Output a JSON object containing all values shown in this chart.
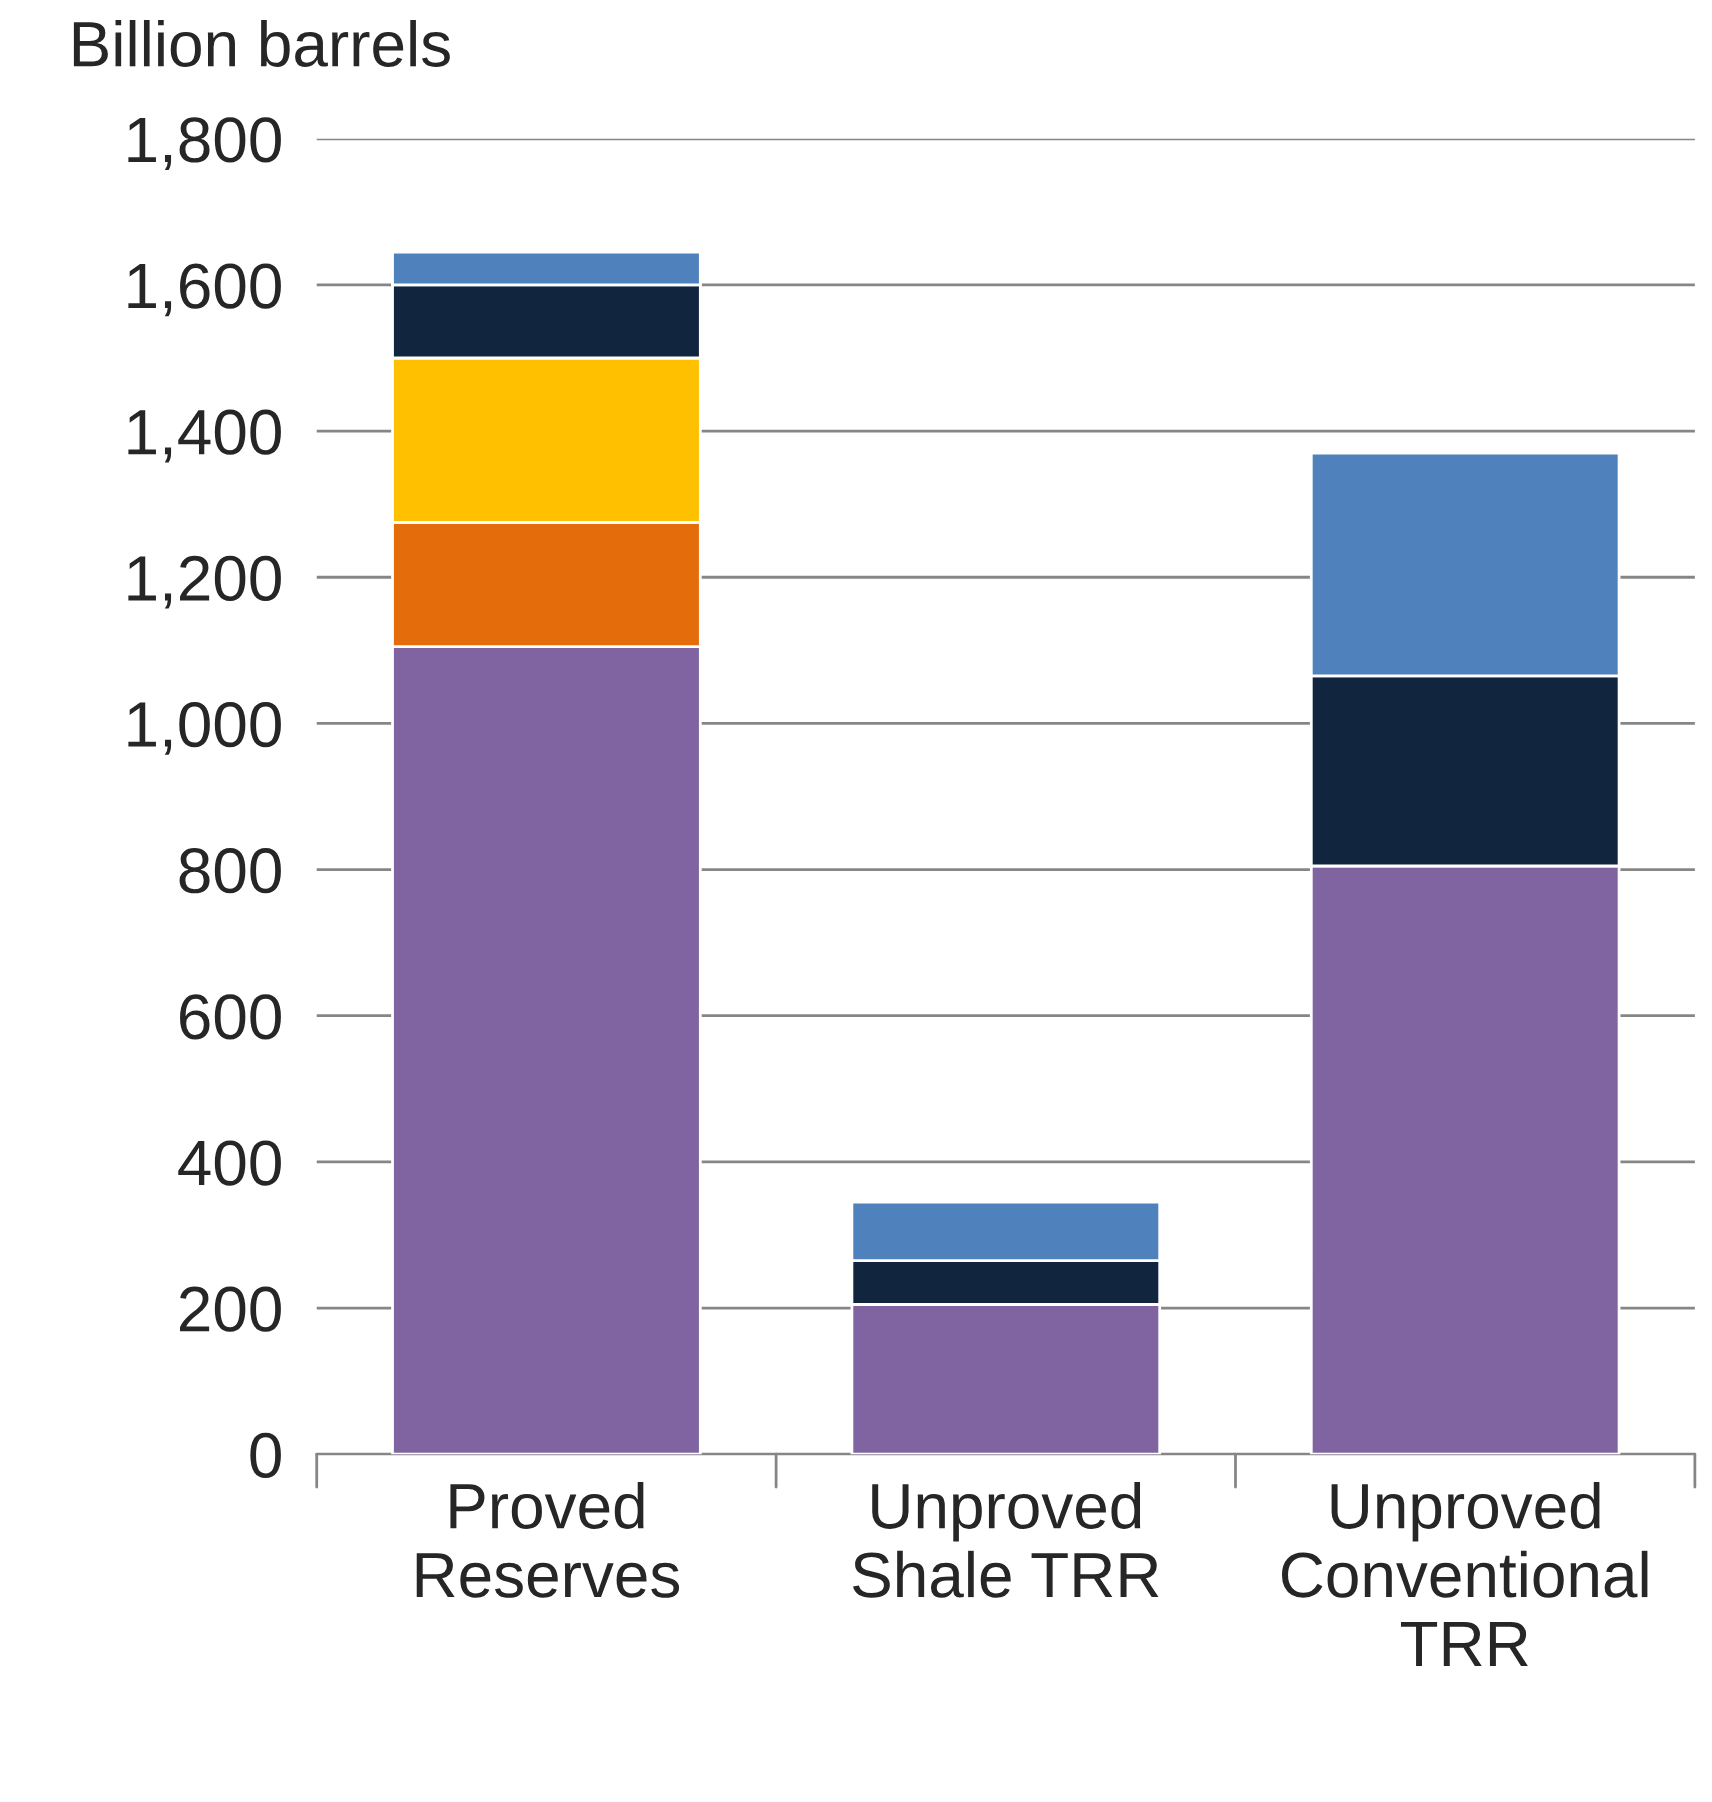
{
  "chart_data": {
    "type": "bar",
    "stacked": true,
    "ylabel": "Billion barrels",
    "categories": [
      "Proved\nReserves",
      "Unproved\nShale TRR",
      "Unproved\nConventional\nTRR"
    ],
    "series": [
      {
        "color": "#8064a2",
        "values": [
          1105,
          205,
          805
        ]
      },
      {
        "color": "#e46c0a",
        "values": [
          170,
          0,
          0
        ]
      },
      {
        "color": "#ffc000",
        "values": [
          225,
          0,
          0
        ]
      },
      {
        "color": "#12253f",
        "values": [
          100,
          60,
          260
        ]
      },
      {
        "color": "#4f81bd",
        "values": [
          45,
          80,
          305
        ]
      }
    ],
    "ylim": [
      0,
      1800
    ],
    "yticks": [
      {
        "value": 0,
        "label": "0"
      },
      {
        "value": 200,
        "label": "200"
      },
      {
        "value": 400,
        "label": "400"
      },
      {
        "value": 600,
        "label": "600"
      },
      {
        "value": 800,
        "label": "800"
      },
      {
        "value": 1000,
        "label": "1,000"
      },
      {
        "value": 1200,
        "label": "1,200"
      },
      {
        "value": 1400,
        "label": "1,400"
      },
      {
        "value": 1600,
        "label": "1,600"
      },
      {
        "value": 1800,
        "label": "1,800"
      }
    ],
    "grid": "y"
  }
}
